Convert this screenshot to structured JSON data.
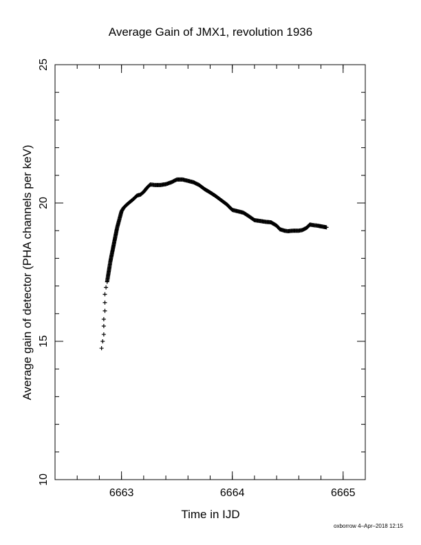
{
  "chart_data": {
    "type": "scatter",
    "title": "Average Gain of JMX1, revolution 1936",
    "xlabel": "Time in IJD",
    "ylabel": "Average gain of detector (PHA channels per keV)",
    "xlim": [
      6662.4,
      6665.2
    ],
    "ylim": [
      10,
      25
    ],
    "x_ticks": [
      {
        "value": 6663,
        "label": "6663"
      },
      {
        "value": 6664,
        "label": "6664"
      },
      {
        "value": 6665,
        "label": "6665"
      }
    ],
    "y_ticks": [
      {
        "value": 10,
        "label": "10"
      },
      {
        "value": 15,
        "label": "15"
      },
      {
        "value": 20,
        "label": "20"
      },
      {
        "value": 25,
        "label": "25"
      }
    ],
    "x_minor_step": 0.2,
    "y_minor_step": 1,
    "marker": "plus",
    "grid": false,
    "series": [
      {
        "points": [
          [
            6662.82,
            14.75
          ],
          [
            6662.83,
            15.0
          ],
          [
            6662.84,
            15.25
          ],
          [
            6662.84,
            15.55
          ],
          [
            6662.84,
            15.8
          ],
          [
            6662.85,
            16.1
          ],
          [
            6662.85,
            16.4
          ],
          [
            6662.85,
            16.7
          ],
          [
            6662.86,
            16.95
          ],
          [
            6662.87,
            17.15
          ],
          [
            6662.88,
            17.4
          ],
          [
            6662.89,
            17.65
          ],
          [
            6662.9,
            17.9
          ],
          [
            6662.91,
            18.1
          ],
          [
            6662.92,
            18.3
          ],
          [
            6662.93,
            18.5
          ],
          [
            6662.94,
            18.7
          ],
          [
            6662.95,
            18.9
          ],
          [
            6662.96,
            19.1
          ],
          [
            6662.97,
            19.25
          ],
          [
            6662.98,
            19.4
          ],
          [
            6662.99,
            19.55
          ],
          [
            6663.0,
            19.7
          ],
          [
            6663.02,
            19.83
          ],
          [
            6663.05,
            19.95
          ],
          [
            6663.08,
            20.05
          ],
          [
            6663.11,
            20.15
          ],
          [
            6663.14,
            20.27
          ],
          [
            6663.17,
            20.3
          ],
          [
            6663.2,
            20.4
          ],
          [
            6663.23,
            20.55
          ],
          [
            6663.26,
            20.67
          ],
          [
            6663.3,
            20.65
          ],
          [
            6663.35,
            20.65
          ],
          [
            6663.4,
            20.68
          ],
          [
            6663.45,
            20.75
          ],
          [
            6663.5,
            20.85
          ],
          [
            6663.55,
            20.85
          ],
          [
            6663.6,
            20.8
          ],
          [
            6663.65,
            20.75
          ],
          [
            6663.7,
            20.65
          ],
          [
            6663.75,
            20.5
          ],
          [
            6663.8,
            20.38
          ],
          [
            6663.85,
            20.25
          ],
          [
            6663.9,
            20.1
          ],
          [
            6663.95,
            19.95
          ],
          [
            6664.0,
            19.75
          ],
          [
            6664.05,
            19.7
          ],
          [
            6664.1,
            19.65
          ],
          [
            6664.15,
            19.52
          ],
          [
            6664.2,
            19.38
          ],
          [
            6664.25,
            19.35
          ],
          [
            6664.3,
            19.32
          ],
          [
            6664.35,
            19.3
          ],
          [
            6664.4,
            19.18
          ],
          [
            6664.43,
            19.05
          ],
          [
            6664.47,
            19.0
          ],
          [
            6664.5,
            18.98
          ],
          [
            6664.55,
            19.0
          ],
          [
            6664.6,
            19.0
          ],
          [
            6664.63,
            19.02
          ],
          [
            6664.67,
            19.1
          ],
          [
            6664.7,
            19.22
          ],
          [
            6664.73,
            19.2
          ],
          [
            6664.77,
            19.18
          ],
          [
            6664.81,
            19.15
          ],
          [
            6664.85,
            19.12
          ]
        ]
      }
    ]
  },
  "footer": "oxborrow  4–Apr–2018 12:15"
}
